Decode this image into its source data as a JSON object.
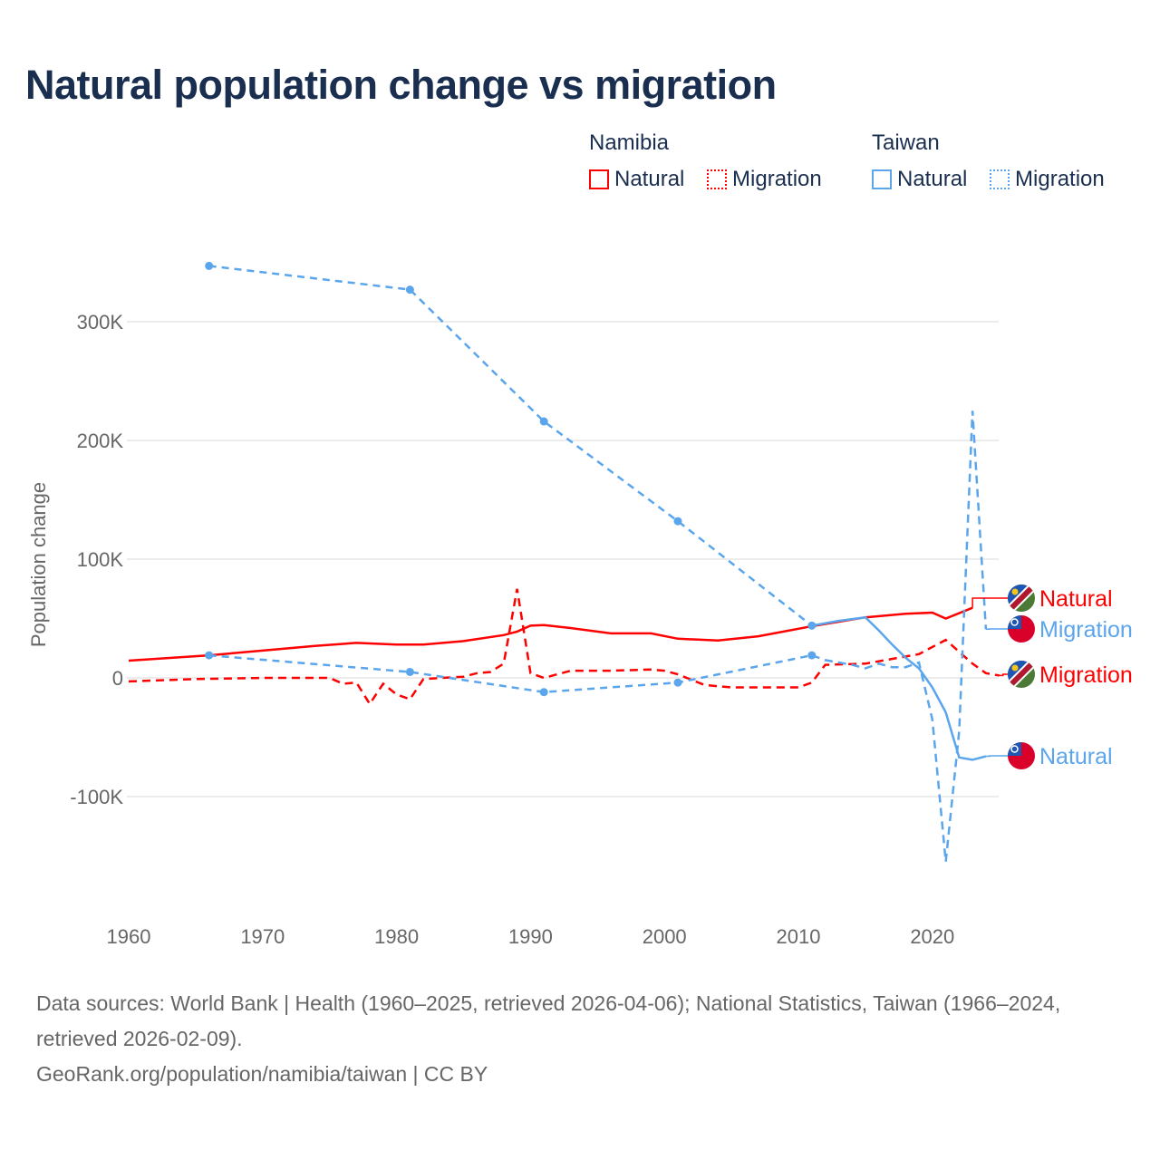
{
  "title": "Natural population change vs migration",
  "legend": {
    "groups": [
      {
        "name": "Namibia",
        "color": "#ff0000",
        "items": [
          "Natural",
          "Migration"
        ]
      },
      {
        "name": "Taiwan",
        "color": "#5aa5ec",
        "items": [
          "Natural",
          "Migration"
        ]
      }
    ]
  },
  "footer": {
    "sources": "Data sources: World Bank | Health (1960–2025, retrieved 2026-04-06); National Statistics, Taiwan (1966–2024, retrieved 2026-02-09).",
    "credit": "GeoRank.org/population/namibia/taiwan | CC BY"
  },
  "chart_data": {
    "type": "line",
    "title": "Natural population change vs migration",
    "xlabel": "",
    "ylabel": "Population change",
    "xlim": [
      1960,
      2025
    ],
    "ylim": [
      -160000,
      350000
    ],
    "x_ticks": [
      1960,
      1970,
      1980,
      1990,
      2000,
      2010,
      2020
    ],
    "y_ticks": [
      {
        "v": 300000,
        "label": "300K"
      },
      {
        "v": 200000,
        "label": "200K"
      },
      {
        "v": 100000,
        "label": "100K"
      },
      {
        "v": 0,
        "label": "0"
      },
      {
        "v": -100000,
        "label": "-100K"
      }
    ],
    "grid": true,
    "series": [
      {
        "name": "Natural",
        "country": "Namibia",
        "color": "#ff0000",
        "style": "solid",
        "x": [
          1960,
          1966,
          1970,
          1974,
          1977,
          1980,
          1982,
          1985,
          1988,
          1989,
          1990,
          1991,
          1993,
          1996,
          1999,
          2001,
          2004,
          2007,
          2011,
          2015,
          2018,
          2020,
          2021,
          2023
        ],
        "y": [
          14500,
          19000,
          23000,
          27000,
          29500,
          28000,
          28000,
          31000,
          36000,
          39000,
          44000,
          44500,
          42000,
          37500,
          37500,
          33000,
          31500,
          35000,
          43500,
          51000,
          54000,
          55000,
          50000,
          59000
        ],
        "end_label": "Natural"
      },
      {
        "name": "Migration",
        "country": "Namibia",
        "color": "#ff0000",
        "style": "dashed",
        "x": [
          1960,
          1965,
          1970,
          1975,
          1976,
          1977,
          1978,
          1979,
          1980,
          1981,
          1982,
          1985,
          1986,
          1987,
          1988,
          1989,
          1990,
          1991,
          1993,
          1996,
          1999,
          2000,
          2001,
          2003,
          2005,
          2010,
          2011,
          2012,
          2015,
          2019,
          2021,
          2023,
          2024,
          2025
        ],
        "y": [
          -3000,
          -1000,
          0,
          0,
          -5000,
          -4000,
          -22000,
          -5000,
          -14000,
          -18000,
          -1000,
          1000,
          4000,
          5000,
          12000,
          75000,
          4000,
          0,
          6000,
          6000,
          7000,
          6000,
          3000,
          -6000,
          -8000,
          -8000,
          -4000,
          11000,
          12000,
          20000,
          32000,
          12000,
          4000,
          2000
        ],
        "end_label": "Migration"
      },
      {
        "name": "Natural",
        "country": "Taiwan",
        "color": "#5aa5ec",
        "style": "solid",
        "x": [
          1966,
          1981,
          1991,
          2001,
          2011,
          2013,
          2015,
          2016,
          2017,
          2018,
          2019,
          2020,
          2021,
          2022,
          2023,
          2024
        ],
        "y": [
          347000,
          327000,
          216000,
          132000,
          44000,
          48000,
          51000,
          40000,
          28000,
          17000,
          8000,
          -8000,
          -29000,
          -67000,
          -69000,
          -66000
        ],
        "sparse_until": 2011,
        "end_label": "Natural"
      },
      {
        "name": "Migration",
        "country": "Taiwan",
        "color": "#5aa5ec",
        "style": "dashed",
        "x": [
          1966,
          1981,
          1991,
          2001,
          2011,
          2012,
          2014,
          2015,
          2016,
          2017,
          2018,
          2019,
          2020,
          2021,
          2022,
          2023,
          2024
        ],
        "y": [
          19000,
          5000,
          -12000,
          -4000,
          19000,
          15000,
          11000,
          8000,
          12000,
          9000,
          9000,
          13000,
          -35000,
          -155000,
          -45000,
          225000,
          41000
        ],
        "sparse_until": 2011,
        "end_label": "Migration"
      }
    ]
  }
}
